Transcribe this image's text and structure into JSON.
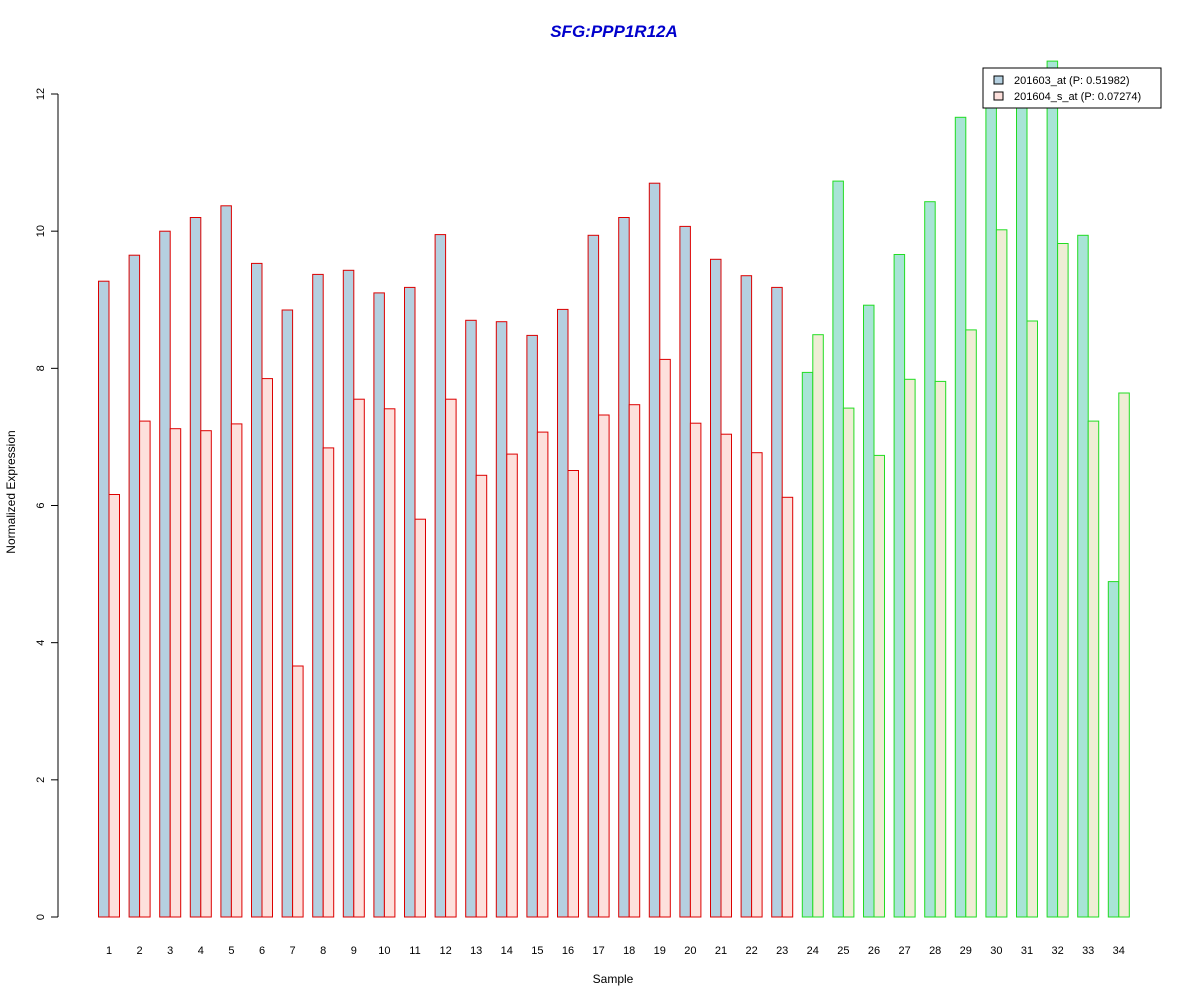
{
  "chart_data": {
    "type": "bar",
    "title": "SFG:PPP1R12A",
    "xlabel": "Sample",
    "ylabel": "Normalized Expression",
    "ylim": [
      0,
      12
    ],
    "yticks": [
      0,
      2,
      4,
      6,
      8,
      10,
      12
    ],
    "grid": false,
    "legend_position": "top-right",
    "categories": [
      "1",
      "2",
      "3",
      "4",
      "5",
      "6",
      "7",
      "8",
      "9",
      "10",
      "11",
      "12",
      "13",
      "14",
      "15",
      "16",
      "17",
      "18",
      "19",
      "20",
      "21",
      "22",
      "23",
      "24",
      "25",
      "26",
      "27",
      "28",
      "29",
      "30",
      "31",
      "32",
      "33",
      "34"
    ],
    "group_split_after": 23,
    "colors": {
      "title": "#0000cc",
      "group1_border": "#dd0000",
      "group2_border": "#22dd22",
      "group1_series1_fill": "#b5d0e0",
      "group1_series2_fill": "#fde0dc",
      "group2_series1_fill": "#a8e4d6",
      "group2_series2_fill": "#efedd5",
      "legend_series1": "#b5d0e0",
      "legend_series2": "#fde0dc"
    },
    "series": [
      {
        "name": "201603_at (P: 0.51982)",
        "values": [
          9.27,
          9.65,
          10.0,
          10.2,
          10.37,
          9.53,
          8.85,
          9.37,
          9.43,
          9.1,
          9.18,
          9.95,
          8.7,
          8.68,
          8.48,
          8.86,
          9.94,
          10.2,
          10.7,
          10.07,
          9.59,
          9.35,
          9.18,
          7.94,
          10.73,
          8.92,
          9.66,
          10.43,
          11.66,
          11.9,
          11.9,
          12.48,
          9.94,
          4.89
        ]
      },
      {
        "name": "201604_s_at (P: 0.07274)",
        "values": [
          6.16,
          7.23,
          7.12,
          7.09,
          7.19,
          7.85,
          3.66,
          6.84,
          7.55,
          7.41,
          5.8,
          7.55,
          6.44,
          6.75,
          7.07,
          6.51,
          7.32,
          7.47,
          8.13,
          7.2,
          7.04,
          6.77,
          6.12,
          8.49,
          7.42,
          6.73,
          7.84,
          7.81,
          8.56,
          10.02,
          8.69,
          9.82,
          7.23,
          7.64
        ]
      }
    ]
  }
}
